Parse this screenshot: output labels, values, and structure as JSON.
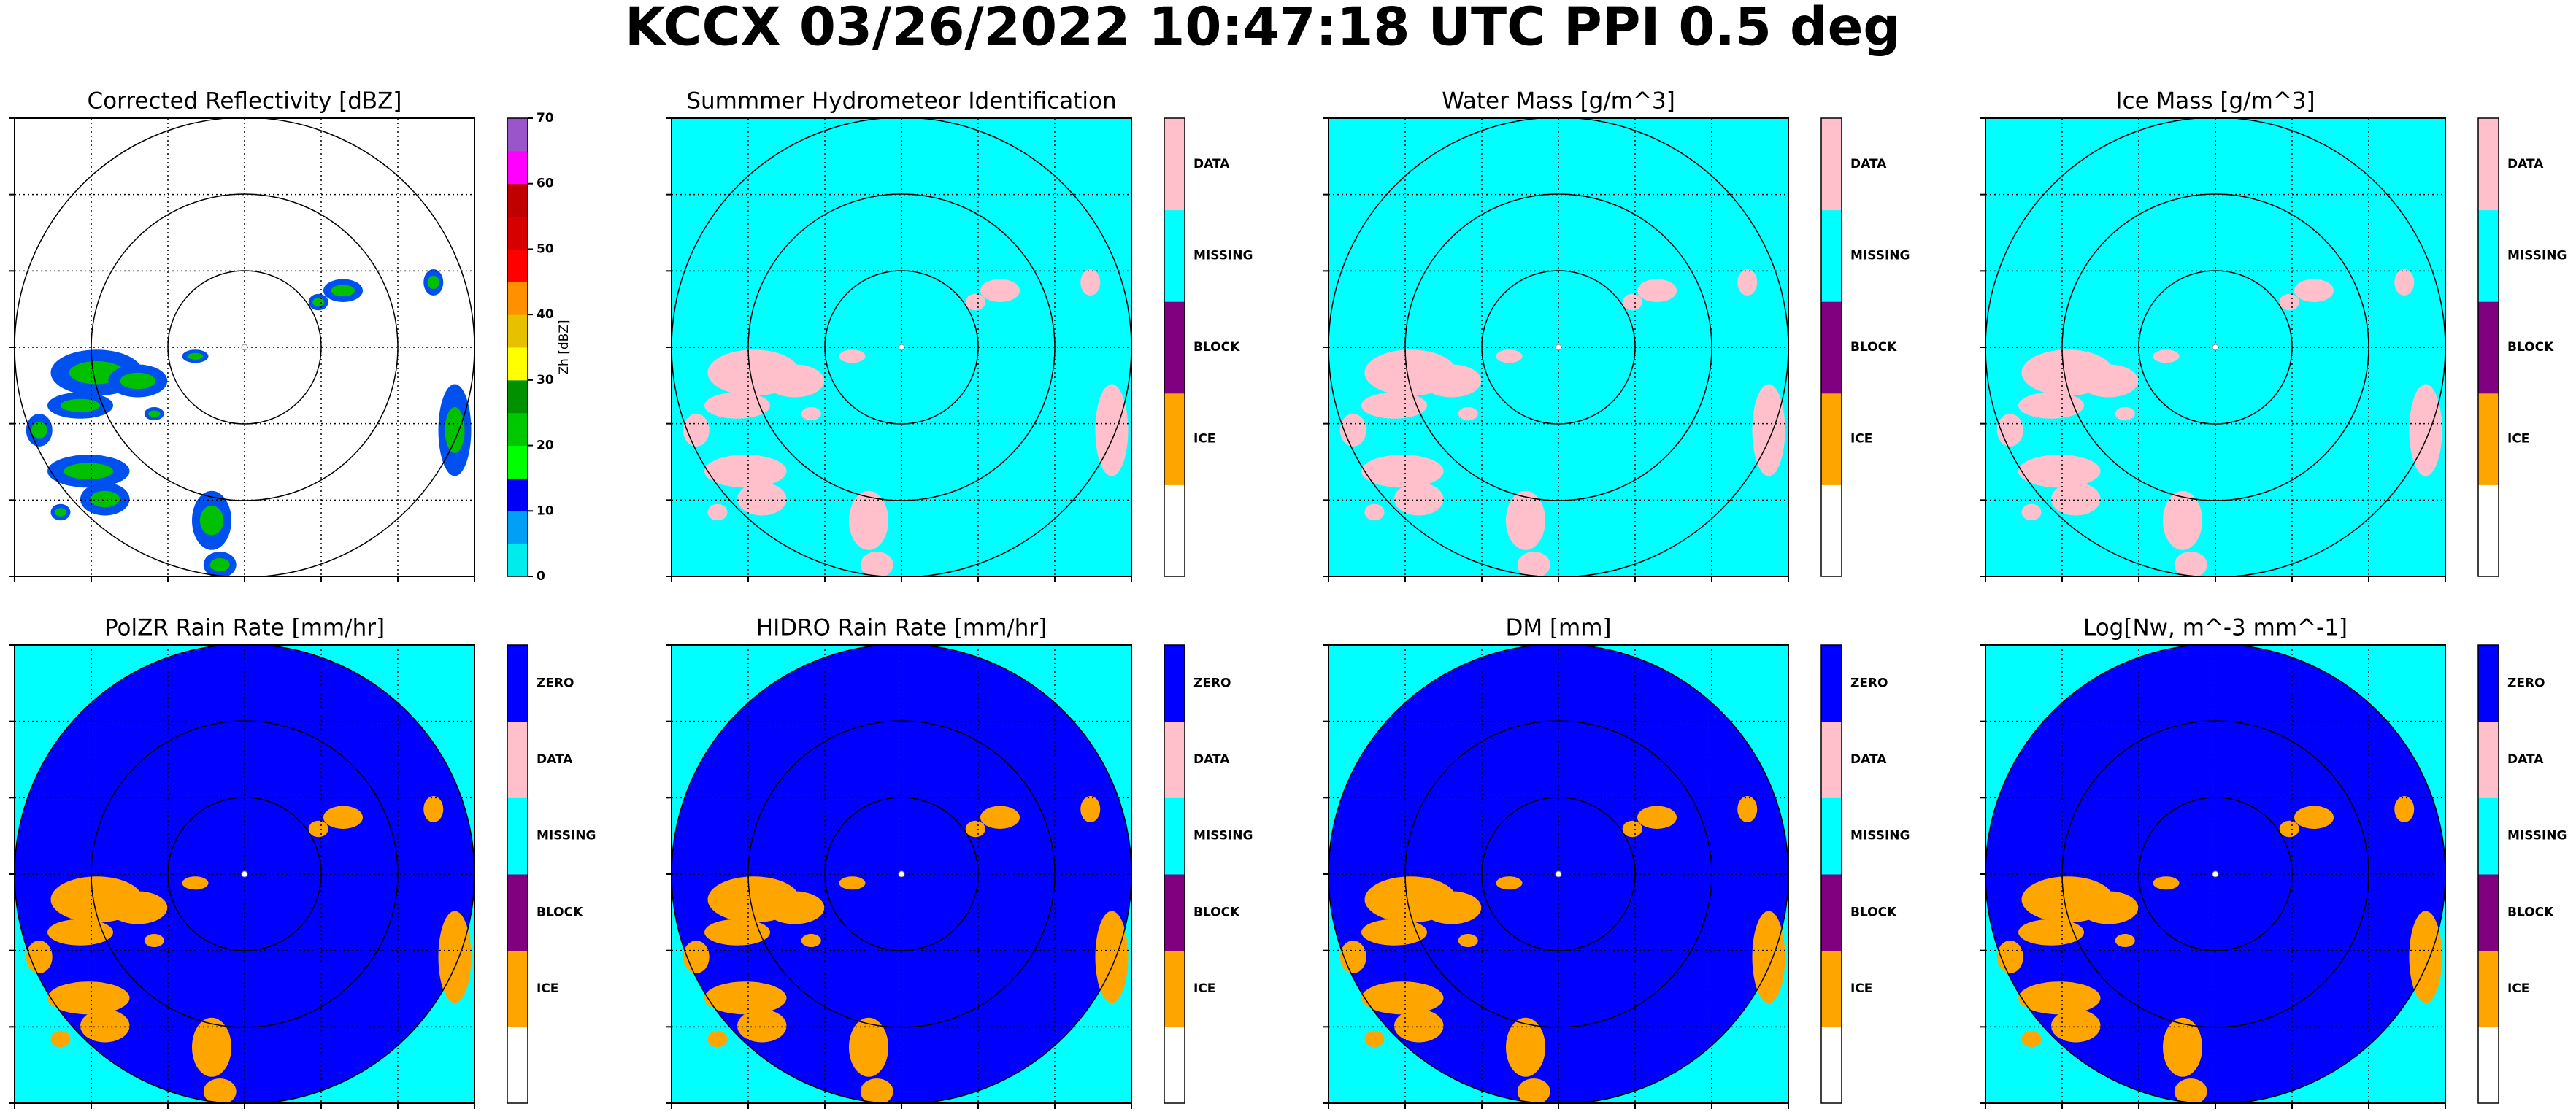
{
  "title": "KCCX 03/26/2022 10:47:18 UTC PPI 0.5 deg",
  "chart_data": [
    {
      "type": "ppi",
      "title": "Corrected Reflectivity [dBZ]",
      "background": "#ffffff",
      "disk": null,
      "echo_colors": [
        "#0050f0",
        "#00c000"
      ],
      "colorbar": {
        "type": "continuous",
        "label": "Zh [dBZ]",
        "ylim": [
          0,
          70
        ],
        "yticks": [
          0,
          10,
          20,
          30,
          40,
          50,
          60,
          70
        ],
        "colors": [
          "#00ecec",
          "#01a0f6",
          "#0000f6",
          "#00ff00",
          "#00c800",
          "#009000",
          "#ffff00",
          "#e7c000",
          "#ff9000",
          "#ff0000",
          "#d60000",
          "#c00000",
          "#ff00ff",
          "#9955c9"
        ]
      }
    },
    {
      "type": "ppi",
      "title": "Summmer Hydrometeor Identification",
      "background": "#00ffff",
      "disk": null,
      "echo_colors": [
        "#ffc0cb"
      ],
      "colorbar": {
        "type": "categorical",
        "categories": [
          null,
          "ICE",
          "BLOCK",
          "MISSING",
          "DATA"
        ],
        "colors": [
          "#ffffff",
          "#ffa500",
          "#800080",
          "#00ffff",
          "#ffc0cb"
        ]
      }
    },
    {
      "type": "ppi",
      "title": "Water Mass [g/m^3]",
      "background": "#00ffff",
      "disk": null,
      "echo_colors": [
        "#ffc0cb"
      ],
      "colorbar": {
        "type": "categorical",
        "categories": [
          null,
          "ICE",
          "BLOCK",
          "MISSING",
          "DATA"
        ],
        "colors": [
          "#ffffff",
          "#ffa500",
          "#800080",
          "#00ffff",
          "#ffc0cb"
        ]
      }
    },
    {
      "type": "ppi",
      "title": "Ice Mass [g/m^3]",
      "background": "#00ffff",
      "disk": null,
      "echo_colors": [
        "#ffc0cb"
      ],
      "colorbar": {
        "type": "categorical",
        "categories": [
          null,
          "ICE",
          "BLOCK",
          "MISSING",
          "DATA"
        ],
        "colors": [
          "#ffffff",
          "#ffa500",
          "#800080",
          "#00ffff",
          "#ffc0cb"
        ]
      }
    },
    {
      "type": "ppi",
      "title": "PolZR Rain Rate [mm/hr]",
      "background": "#00ffff",
      "disk": "#0000ff",
      "echo_colors": [
        "#ffa500"
      ],
      "colorbar": {
        "type": "categorical",
        "categories": [
          null,
          "ICE",
          "BLOCK",
          "MISSING",
          "DATA",
          "ZERO"
        ],
        "colors": [
          "#ffffff",
          "#ffa500",
          "#800080",
          "#00ffff",
          "#ffc0cb",
          "#0000ff"
        ]
      }
    },
    {
      "type": "ppi",
      "title": "HIDRO Rain Rate [mm/hr]",
      "background": "#00ffff",
      "disk": "#0000ff",
      "echo_colors": [
        "#ffa500"
      ],
      "colorbar": {
        "type": "categorical",
        "categories": [
          null,
          "ICE",
          "BLOCK",
          "MISSING",
          "DATA",
          "ZERO"
        ],
        "colors": [
          "#ffffff",
          "#ffa500",
          "#800080",
          "#00ffff",
          "#ffc0cb",
          "#0000ff"
        ]
      }
    },
    {
      "type": "ppi",
      "title": "DM [mm]",
      "background": "#00ffff",
      "disk": "#0000ff",
      "echo_colors": [
        "#ffa500"
      ],
      "colorbar": {
        "type": "categorical",
        "categories": [
          null,
          "ICE",
          "BLOCK",
          "MISSING",
          "DATA",
          "ZERO"
        ],
        "colors": [
          "#ffffff",
          "#ffa500",
          "#800080",
          "#00ffff",
          "#ffc0cb",
          "#0000ff"
        ]
      }
    },
    {
      "type": "ppi",
      "title": "Log[Nw, m^-3 mm^-1]",
      "background": "#00ffff",
      "disk": "#0000ff",
      "echo_colors": [
        "#ffa500"
      ],
      "colorbar": {
        "type": "categorical",
        "categories": [
          null,
          "ICE",
          "BLOCK",
          "MISSING",
          "DATA",
          "ZERO"
        ],
        "colors": [
          "#ffffff",
          "#ffa500",
          "#800080",
          "#00ffff",
          "#ffc0cb",
          "#0000ff"
        ]
      }
    }
  ]
}
